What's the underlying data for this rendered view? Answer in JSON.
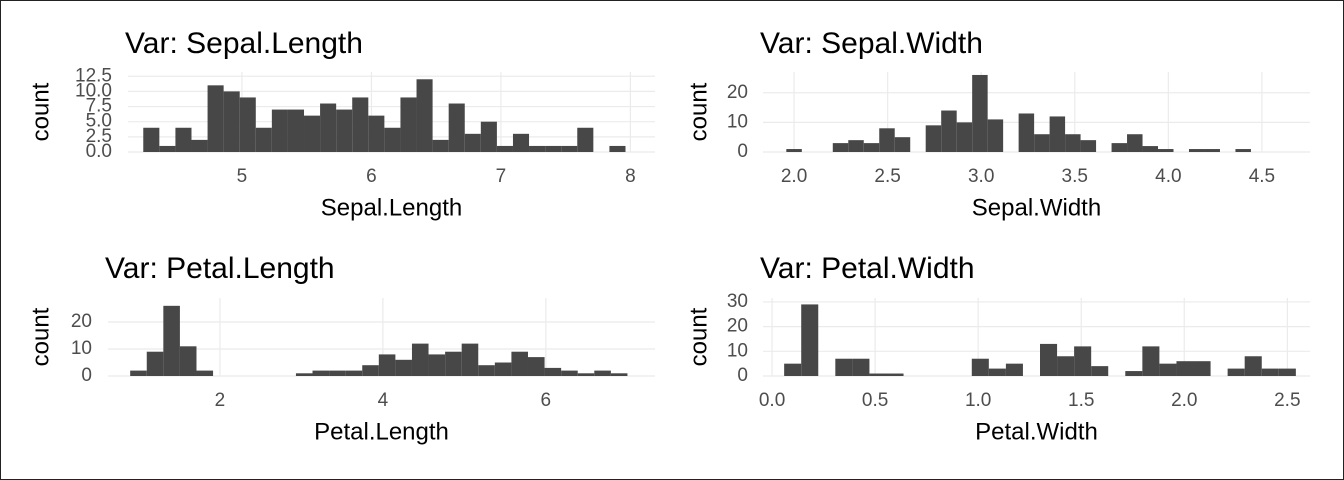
{
  "chart_data": [
    {
      "type": "histogram",
      "title": "Var: Sepal.Length",
      "xlabel": "Sepal.Length",
      "ylabel": "count",
      "color": "#474747",
      "grid": true,
      "bins": [
        4.2379,
        4.3621,
        4.4862,
        4.6103,
        4.7345,
        4.8586,
        4.9828,
        5.1069,
        5.231,
        5.3552,
        5.4793,
        5.6034,
        5.7276,
        5.8517,
        5.9759,
        6.1,
        6.2241,
        6.3483,
        6.4724,
        6.5966,
        6.7207,
        6.8448,
        6.969,
        7.0931,
        7.2172,
        7.3414,
        7.4655,
        7.5897,
        7.7138,
        7.8379,
        7.9621
      ],
      "values": [
        4,
        1,
        4,
        2,
        11,
        10,
        9,
        4,
        7,
        7,
        6,
        8,
        7,
        9,
        6,
        4,
        9,
        12,
        2,
        8,
        3,
        5,
        1,
        3,
        1,
        1,
        1,
        4,
        0,
        1
      ],
      "xlim": [
        4.12,
        8.19
      ],
      "xticks": [
        5,
        6,
        7,
        8
      ],
      "ylim": [
        0,
        13.2
      ],
      "yticks": [
        {
          "value": 0,
          "label": "0.0"
        },
        2.5,
        {
          "value": 5,
          "label": "5.0"
        },
        7.5,
        {
          "value": 10,
          "label": "10.0"
        },
        12.5
      ]
    },
    {
      "type": "histogram",
      "title": "Var: Sepal.Width",
      "xlabel": "Sepal.Width",
      "ylabel": "count",
      "color": "#474747",
      "grid": true,
      "bins": [
        1.9586,
        2.0414,
        2.1241,
        2.2069,
        2.2897,
        2.3724,
        2.4552,
        2.5379,
        2.6207,
        2.7034,
        2.7862,
        2.869,
        2.9517,
        3.0345,
        3.1172,
        3.2,
        3.2828,
        3.3655,
        3.4483,
        3.531,
        3.6138,
        3.6966,
        3.7793,
        3.8621,
        3.9448,
        4.0276,
        4.1103,
        4.1931,
        4.2759,
        4.3586,
        4.4414
      ],
      "values": [
        1,
        0,
        0,
        3,
        4,
        3,
        8,
        5,
        0,
        9,
        14,
        10,
        26,
        11,
        0,
        13,
        6,
        12,
        6,
        4,
        0,
        3,
        6,
        2,
        1,
        0,
        1,
        1,
        0,
        1
      ],
      "xlim": [
        1.834,
        4.757
      ],
      "xticks": [
        {
          "value": 2,
          "label": "2.0"
        },
        2.5,
        {
          "value": 3,
          "label": "3.0"
        },
        3.5,
        {
          "value": 4,
          "label": "4.0"
        },
        4.5
      ],
      "ylim": [
        0,
        27
      ],
      "yticks": [
        0,
        10,
        20
      ]
    },
    {
      "type": "histogram",
      "title": "Var: Petal.Length",
      "xlabel": "Petal.Length",
      "ylabel": "count",
      "color": "#474747",
      "grid": true,
      "bins": [
        0.8983,
        1.1017,
        1.3052,
        1.5086,
        1.7121,
        1.9155,
        2.119,
        2.3224,
        2.5259,
        2.7293,
        2.9328,
        3.1362,
        3.3397,
        3.5431,
        3.7466,
        3.95,
        4.1534,
        4.3569,
        4.5603,
        4.7638,
        4.9672,
        5.1707,
        5.3741,
        5.5776,
        5.781,
        5.9845,
        6.1879,
        6.3914,
        6.5948,
        6.7983,
        7.0017
      ],
      "values": [
        2,
        9,
        26,
        11,
        2,
        0,
        0,
        0,
        0,
        0,
        1,
        2,
        2,
        2,
        4,
        8,
        6,
        12,
        8,
        9,
        12,
        4,
        5,
        9,
        7,
        3,
        2,
        1,
        2,
        1
      ],
      "xlim": [
        0.626,
        7.34
      ],
      "xticks": [
        2,
        4,
        6
      ],
      "ylim": [
        0,
        28.9
      ],
      "yticks": [
        0,
        10,
        20
      ]
    },
    {
      "type": "histogram",
      "title": "Var: Petal.Width",
      "xlabel": "Petal.Width",
      "ylabel": "count",
      "color": "#474747",
      "grid": true,
      "bins": [
        0.0586,
        0.1414,
        0.2241,
        0.3069,
        0.3897,
        0.4724,
        0.5552,
        0.6379,
        0.7207,
        0.8034,
        0.8862,
        0.969,
        1.0517,
        1.1345,
        1.2172,
        1.3,
        1.3828,
        1.4655,
        1.5483,
        1.631,
        1.7138,
        1.7966,
        1.8793,
        1.9621,
        2.0448,
        2.1276,
        2.2103,
        2.2931,
        2.3759,
        2.4586,
        2.5414
      ],
      "values": [
        5,
        29,
        0,
        7,
        7,
        1,
        1,
        0,
        0,
        0,
        0,
        7,
        3,
        5,
        0,
        13,
        8,
        12,
        4,
        0,
        2,
        12,
        5,
        6,
        6,
        0,
        3,
        8,
        3,
        3
      ],
      "xlim": [
        -0.044,
        2.61
      ],
      "xticks": [
        {
          "value": 0,
          "label": "0.0"
        },
        0.5,
        {
          "value": 1,
          "label": "1.0"
        },
        1.5,
        {
          "value": 2,
          "label": "2.0"
        },
        2.5
      ],
      "ylim": [
        0,
        31.6
      ],
      "yticks": [
        0,
        10,
        20,
        30
      ]
    }
  ]
}
